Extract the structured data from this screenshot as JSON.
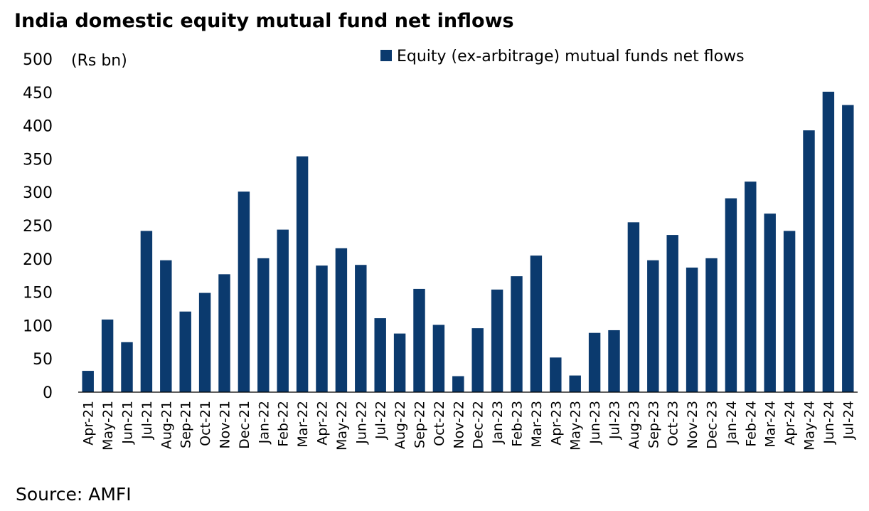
{
  "source": "Source: AMFI",
  "colors": {
    "bar": "#0b3a6e",
    "axis": "#000000"
  },
  "chart_data": {
    "type": "bar",
    "title": "India domestic equity mutual fund net inflows",
    "unit_label": "(Rs bn)",
    "xlabel": "",
    "ylabel": "",
    "ylim": [
      0,
      500
    ],
    "yticks": [
      0,
      50,
      100,
      150,
      200,
      250,
      300,
      350,
      400,
      450,
      500
    ],
    "grid": false,
    "legend_position": "top-right",
    "categories": [
      "Apr-21",
      "May-21",
      "Jun-21",
      "Jul-21",
      "Aug-21",
      "Sep-21",
      "Oct-21",
      "Nov-21",
      "Dec-21",
      "Jan-22",
      "Feb-22",
      "Mar-22",
      "Apr-22",
      "May-22",
      "Jun-22",
      "Jul-22",
      "Aug-22",
      "Sep-22",
      "Oct-22",
      "Nov-22",
      "Dec-22",
      "Jan-23",
      "Feb-23",
      "Mar-23",
      "Apr-23",
      "May-23",
      "Jun-23",
      "Jul-23",
      "Aug-23",
      "Sep-23",
      "Oct-23",
      "Nov-23",
      "Dec-23",
      "Jan-24",
      "Feb-24",
      "Mar-24",
      "Apr-24",
      "May-24",
      "Jun-24",
      "Jul-24"
    ],
    "series": [
      {
        "name": "Equity (ex-arbitrage) mutual funds net flows",
        "values": [
          32,
          109,
          75,
          242,
          198,
          121,
          149,
          177,
          301,
          201,
          244,
          354,
          190,
          216,
          191,
          111,
          88,
          155,
          101,
          24,
          96,
          154,
          174,
          205,
          52,
          25,
          89,
          93,
          255,
          198,
          236,
          187,
          201,
          291,
          316,
          268,
          242,
          393,
          451,
          431
        ]
      }
    ]
  }
}
